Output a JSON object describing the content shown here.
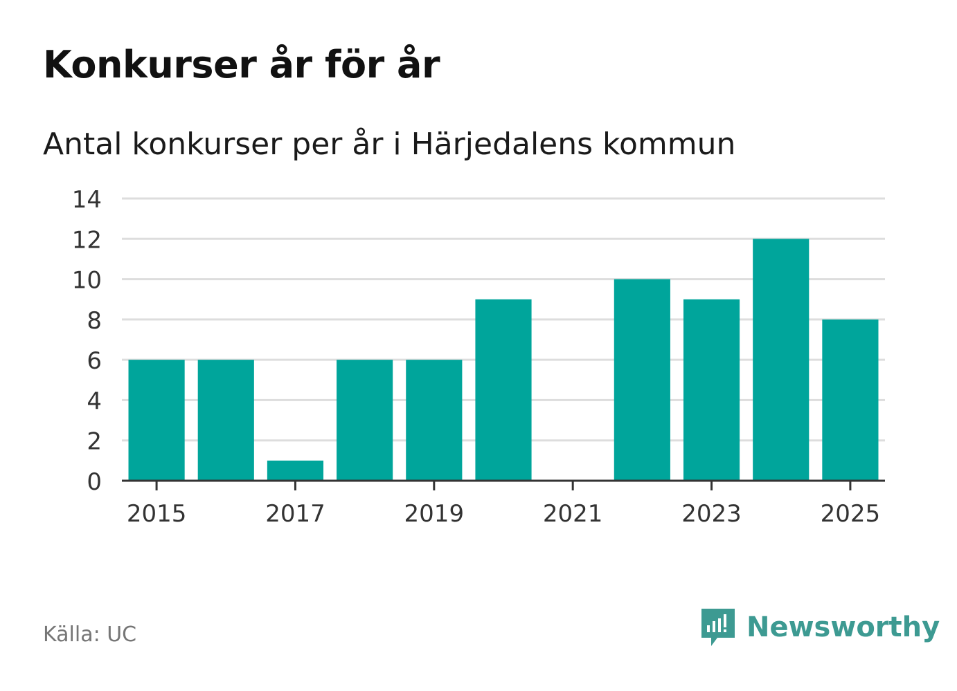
{
  "title": "Konkurser år för år",
  "subtitle": "Antal konkurser per år i Härjedalens kommun",
  "source": "Källa: UC",
  "brand": {
    "name": "Newsworthy",
    "icon": "newsworthy-logo-icon",
    "color": "#3d9a92"
  },
  "chart_data": {
    "type": "bar",
    "x": [
      2015,
      2016,
      2017,
      2018,
      2019,
      2020,
      2021,
      2022,
      2023,
      2024,
      2025
    ],
    "values": [
      6,
      6,
      1,
      6,
      6,
      9,
      0,
      10,
      9,
      12,
      8
    ],
    "xticks": [
      "2015",
      "2017",
      "2019",
      "2021",
      "2023",
      "2025"
    ],
    "yticks": [
      "0",
      "2",
      "4",
      "6",
      "8",
      "10",
      "12",
      "14"
    ],
    "ylim": [
      0,
      14
    ],
    "grid": true,
    "bar_color": "#00a59b"
  }
}
